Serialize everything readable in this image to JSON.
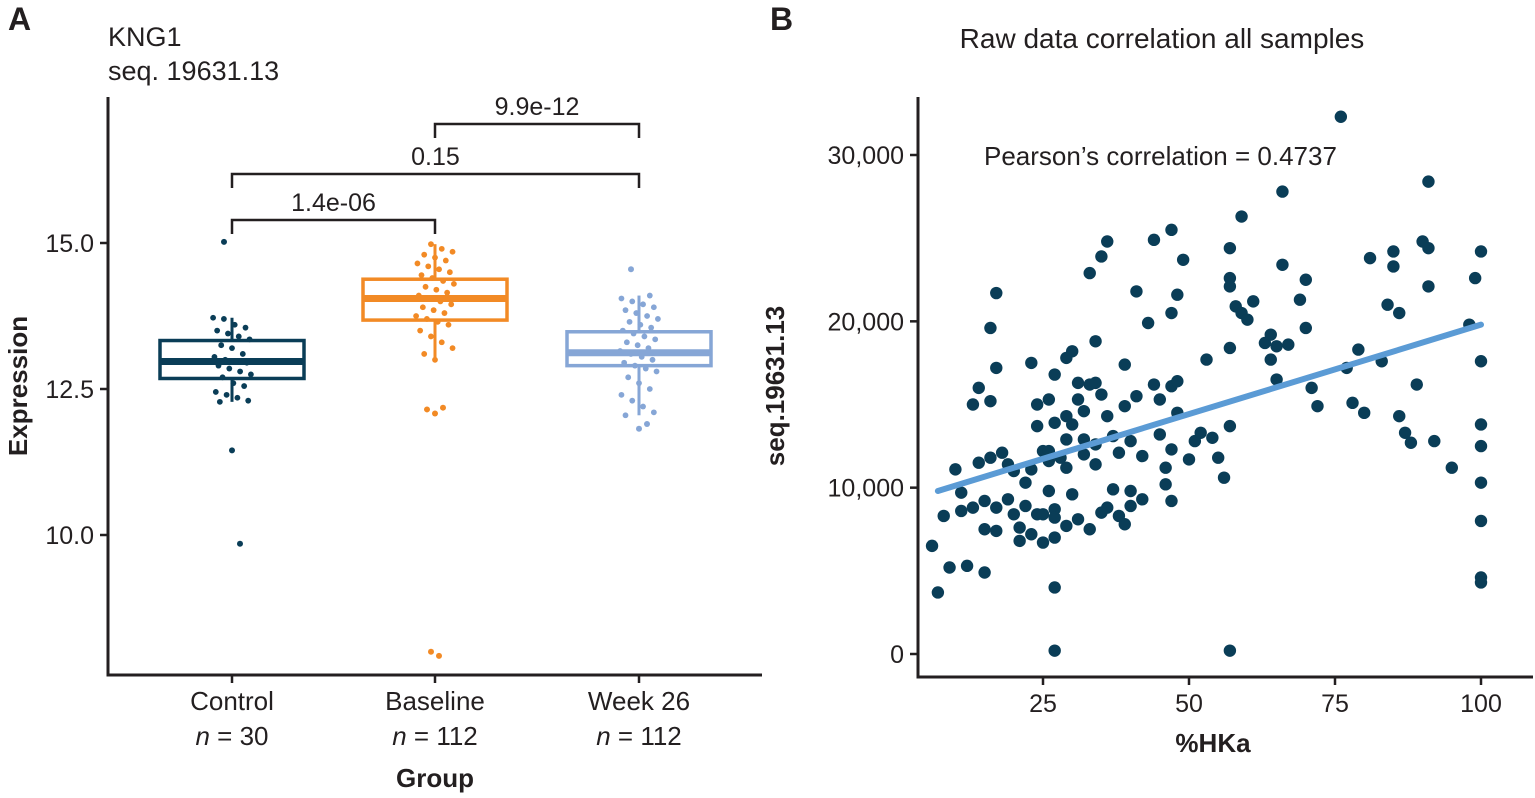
{
  "panels": {
    "a": {
      "letter": "A"
    },
    "b": {
      "letter": "B"
    }
  },
  "colors": {
    "control": "#0a3d57",
    "baseline": "#f28a25",
    "week26": "#86a6d6",
    "scatter": "#0a3d57",
    "fit": "#5b9bd5"
  },
  "chart_data": [
    {
      "type": "box",
      "title": "KNG1",
      "subtitle": "seq. 19631.13",
      "xlabel": "Group",
      "ylabel": "Expression",
      "ylim": [
        7.5,
        17.5
      ],
      "yticks": [
        10.0,
        12.5,
        15.0
      ],
      "ytick_labels": [
        "10.0",
        "12.5",
        "15.0"
      ],
      "groups": [
        {
          "name": "Control",
          "n_label": "n",
          "n_value": " = 30",
          "q1": 12.68,
          "median": 12.97,
          "q3": 13.33,
          "whisker_low": 12.28,
          "whisker_high": 13.72,
          "outliers": [
            15.02,
            11.45,
            9.85
          ],
          "points": [
            13.72,
            13.7,
            13.6,
            13.55,
            13.5,
            13.45,
            13.4,
            13.35,
            13.25,
            13.2,
            13.1,
            13.05,
            13.0,
            12.98,
            12.95,
            12.9,
            12.85,
            12.8,
            12.75,
            12.7,
            12.6,
            12.55,
            12.45,
            12.4,
            12.35,
            12.3,
            12.28
          ]
        },
        {
          "name": "Baseline",
          "n_label": "n",
          "n_value": " = 112",
          "q1": 13.68,
          "median": 14.05,
          "q3": 14.38,
          "whisker_low": 13.0,
          "whisker_high": 14.98,
          "outliers": [
            12.15,
            12.08,
            12.18,
            8.0,
            7.93
          ],
          "points": [
            14.98,
            14.9,
            14.85,
            14.8,
            14.75,
            14.7,
            14.65,
            14.6,
            14.55,
            14.5,
            14.45,
            14.4,
            14.35,
            14.3,
            14.25,
            14.2,
            14.15,
            14.1,
            14.05,
            14.0,
            13.95,
            13.9,
            13.85,
            13.8,
            13.75,
            13.7,
            13.65,
            13.6,
            13.5,
            13.4,
            13.3,
            13.2,
            13.1,
            13.0
          ]
        },
        {
          "name": "Week 26",
          "n_label": "n",
          "n_value": " = 112",
          "q1": 12.9,
          "median": 13.12,
          "q3": 13.48,
          "whisker_low": 12.05,
          "whisker_high": 14.1,
          "outliers": [
            14.55,
            11.82,
            11.9
          ],
          "points": [
            14.1,
            14.05,
            14.0,
            13.95,
            13.9,
            13.85,
            13.8,
            13.75,
            13.7,
            13.65,
            13.6,
            13.55,
            13.5,
            13.45,
            13.4,
            13.35,
            13.3,
            13.25,
            13.2,
            13.15,
            13.1,
            13.05,
            13.0,
            12.95,
            12.9,
            12.85,
            12.8,
            12.7,
            12.6,
            12.5,
            12.4,
            12.3,
            12.2,
            12.1,
            12.05
          ]
        }
      ],
      "comparisons": [
        {
          "from": 0,
          "to": 1,
          "label": "1.4e-06",
          "level": 1
        },
        {
          "from": 0,
          "to": 2,
          "label": "0.15",
          "level": 2
        },
        {
          "from": 1,
          "to": 2,
          "label": "9.9e-12",
          "level": 3
        }
      ]
    },
    {
      "type": "scatter",
      "title": "Raw data correlation all samples",
      "xlabel": "%HKa",
      "ylabel": "seq.19631.13",
      "xlim": [
        2,
        104
      ],
      "ylim": [
        -1200,
        34000
      ],
      "xticks": [
        25,
        50,
        75,
        100
      ],
      "xtick_labels": [
        "25",
        "50",
        "75",
        "100"
      ],
      "yticks": [
        0,
        10000,
        20000,
        30000
      ],
      "ytick_labels": [
        "0",
        "10,000",
        "20,000",
        "30,000"
      ],
      "annotation": "Pearson’s correlation = 0.4737",
      "fit": {
        "x": [
          7,
          100
        ],
        "y": [
          9800,
          19800
        ]
      },
      "points": [
        [
          6,
          6500
        ],
        [
          7,
          3700
        ],
        [
          8,
          8300
        ],
        [
          9,
          5200
        ],
        [
          10,
          11100
        ],
        [
          11,
          9700
        ],
        [
          11,
          8600
        ],
        [
          12,
          5300
        ],
        [
          13,
          8800
        ],
        [
          13,
          15000
        ],
        [
          14,
          11500
        ],
        [
          14,
          16000
        ],
        [
          15,
          9200
        ],
        [
          15,
          7500
        ],
        [
          15,
          4900
        ],
        [
          16,
          19600
        ],
        [
          16,
          15200
        ],
        [
          16,
          11800
        ],
        [
          17,
          21700
        ],
        [
          17,
          17200
        ],
        [
          17,
          8800
        ],
        [
          17,
          7400
        ],
        [
          18,
          12100
        ],
        [
          19,
          9300
        ],
        [
          19,
          11400
        ],
        [
          20,
          8400
        ],
        [
          20,
          11000
        ],
        [
          21,
          7600
        ],
        [
          21,
          6800
        ],
        [
          22,
          10300
        ],
        [
          22,
          8900
        ],
        [
          23,
          7200
        ],
        [
          23,
          11100
        ],
        [
          23,
          17500
        ],
        [
          24,
          15000
        ],
        [
          24,
          13700
        ],
        [
          24,
          8400
        ],
        [
          25,
          6700
        ],
        [
          25,
          12200
        ],
        [
          25,
          8400
        ],
        [
          26,
          15300
        ],
        [
          26,
          11600
        ],
        [
          26,
          12200
        ],
        [
          26,
          9800
        ],
        [
          27,
          16800
        ],
        [
          27,
          13900
        ],
        [
          27,
          8700
        ],
        [
          27,
          8200
        ],
        [
          27,
          7000
        ],
        [
          27,
          4000
        ],
        [
          27,
          200
        ],
        [
          28,
          11800
        ],
        [
          29,
          17800
        ],
        [
          29,
          14300
        ],
        [
          29,
          12900
        ],
        [
          29,
          11200
        ],
        [
          29,
          7700
        ],
        [
          30,
          18200
        ],
        [
          30,
          13800
        ],
        [
          30,
          9600
        ],
        [
          31,
          16300
        ],
        [
          31,
          15300
        ],
        [
          31,
          8100
        ],
        [
          32,
          14600
        ],
        [
          32,
          12900
        ],
        [
          32,
          12000
        ],
        [
          33,
          22900
        ],
        [
          33,
          16200
        ],
        [
          33,
          7500
        ],
        [
          34,
          18800
        ],
        [
          34,
          16300
        ],
        [
          34,
          12600
        ],
        [
          34,
          11400
        ],
        [
          35,
          23900
        ],
        [
          35,
          15600
        ],
        [
          35,
          8500
        ],
        [
          36,
          24800
        ],
        [
          36,
          14300
        ],
        [
          36,
          8800
        ],
        [
          37,
          13100
        ],
        [
          37,
          9900
        ],
        [
          38,
          12100
        ],
        [
          38,
          8300
        ],
        [
          39,
          17400
        ],
        [
          39,
          14900
        ],
        [
          39,
          7800
        ],
        [
          40,
          12800
        ],
        [
          40,
          9800
        ],
        [
          40,
          8900
        ],
        [
          41,
          21800
        ],
        [
          41,
          15500
        ],
        [
          42,
          11900
        ],
        [
          42,
          9300
        ],
        [
          43,
          19900
        ],
        [
          44,
          24900
        ],
        [
          44,
          16200
        ],
        [
          45,
          15300
        ],
        [
          45,
          13200
        ],
        [
          46,
          11200
        ],
        [
          46,
          10200
        ],
        [
          47,
          25500
        ],
        [
          47,
          20500
        ],
        [
          47,
          16100
        ],
        [
          47,
          12300
        ],
        [
          47,
          9200
        ],
        [
          48,
          21600
        ],
        [
          48,
          16400
        ],
        [
          48,
          14500
        ],
        [
          49,
          23700
        ],
        [
          50,
          11700
        ],
        [
          51,
          12800
        ],
        [
          52,
          13300
        ],
        [
          53,
          17700
        ],
        [
          54,
          13000
        ],
        [
          55,
          11800
        ],
        [
          56,
          10600
        ],
        [
          57,
          24400
        ],
        [
          57,
          22600
        ],
        [
          57,
          22100
        ],
        [
          57,
          18400
        ],
        [
          57,
          13700
        ],
        [
          57,
          200
        ],
        [
          58,
          20900
        ],
        [
          59,
          26300
        ],
        [
          59,
          20500
        ],
        [
          60,
          20100
        ],
        [
          61,
          21200
        ],
        [
          63,
          18700
        ],
        [
          64,
          19200
        ],
        [
          64,
          17700
        ],
        [
          65,
          18500
        ],
        [
          65,
          16500
        ],
        [
          66,
          27800
        ],
        [
          66,
          23400
        ],
        [
          67,
          18600
        ],
        [
          69,
          21300
        ],
        [
          70,
          22500
        ],
        [
          70,
          19600
        ],
        [
          71,
          16000
        ],
        [
          72,
          14900
        ],
        [
          76,
          32300
        ],
        [
          77,
          17200
        ],
        [
          78,
          15100
        ],
        [
          79,
          18300
        ],
        [
          80,
          14500
        ],
        [
          81,
          23800
        ],
        [
          83,
          17600
        ],
        [
          84,
          21000
        ],
        [
          85,
          24200
        ],
        [
          85,
          23300
        ],
        [
          86,
          20500
        ],
        [
          86,
          14300
        ],
        [
          87,
          13300
        ],
        [
          88,
          12700
        ],
        [
          89,
          16200
        ],
        [
          90,
          24800
        ],
        [
          91,
          24400
        ],
        [
          91,
          22100
        ],
        [
          91,
          28400
        ],
        [
          92,
          12800
        ],
        [
          95,
          11200
        ],
        [
          98,
          19800
        ],
        [
          99,
          22600
        ],
        [
          100,
          24200
        ],
        [
          100,
          17600
        ],
        [
          100,
          13800
        ],
        [
          100,
          12500
        ],
        [
          100,
          10300
        ],
        [
          100,
          8000
        ],
        [
          100,
          4600
        ],
        [
          100,
          4300
        ]
      ]
    }
  ]
}
